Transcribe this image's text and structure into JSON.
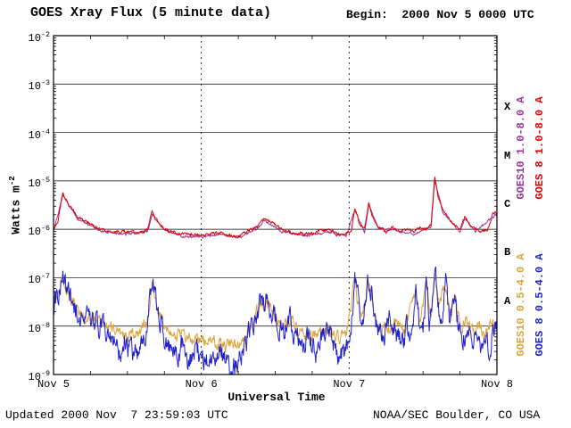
{
  "chart_data": {
    "type": "line",
    "title": "GOES Xray Flux (5 minute data)",
    "begin_label": "Begin:  2000 Nov 5 0000 UTC",
    "xlabel": "Universal Time",
    "ylabel_base": "Watts m",
    "ylabel_exp": "-2",
    "footer_left": "Updated 2000 Nov  7 23:59:03 UTC",
    "footer_right": "NOAA/SEC Boulder, CO USA",
    "x_unit": "hours since 2000 Nov 5 00:00 UTC",
    "xlim": [
      0,
      72
    ],
    "ylim_log10": [
      -9,
      -2
    ],
    "grid": {
      "h_decades": true,
      "v_day_lines": [
        24,
        48
      ]
    },
    "y_tick_base": "10",
    "y_ticks": [
      "-2",
      "-3",
      "-4",
      "-5",
      "-6",
      "-7",
      "-8",
      "-9"
    ],
    "x_ticks": [
      {
        "t": 0,
        "label": "Nov 5"
      },
      {
        "t": 24,
        "label": "Nov 6"
      },
      {
        "t": 48,
        "label": "Nov 7"
      },
      {
        "t": 72,
        "label": "Nov 8"
      }
    ],
    "flare_classes": [
      {
        "label": "X",
        "log10_mid": -3.5
      },
      {
        "label": "M",
        "log10_mid": -4.5
      },
      {
        "label": "C",
        "log10_mid": -5.5
      },
      {
        "label": "B",
        "log10_mid": -6.5
      },
      {
        "label": "A",
        "log10_mid": -7.5
      }
    ],
    "series": [
      {
        "id": "goes10-long",
        "name": "GOES10 1.0-8.0 A",
        "color": "#993399",
        "legend_group": "top",
        "legend_col": "inner",
        "noise_log10": 0.02,
        "points_log10": [
          [
            0,
            -6.05
          ],
          [
            1.5,
            -5.3
          ],
          [
            4,
            -5.8
          ],
          [
            8,
            -6.05
          ],
          [
            12,
            -6.1
          ],
          [
            15.3,
            -6.05
          ],
          [
            16,
            -5.68
          ],
          [
            18,
            -6.0
          ],
          [
            21,
            -6.15
          ],
          [
            24,
            -6.16
          ],
          [
            27,
            -6.1
          ],
          [
            30,
            -6.18
          ],
          [
            33,
            -6.0
          ],
          [
            34.3,
            -5.83
          ],
          [
            37,
            -6.05
          ],
          [
            41,
            -6.14
          ],
          [
            44.5,
            -6.05
          ],
          [
            47.5,
            -6.14
          ],
          [
            48.9,
            -5.6
          ],
          [
            50.5,
            -6.05
          ],
          [
            51.2,
            -5.5
          ],
          [
            52.8,
            -6.0
          ],
          [
            55,
            -6.0
          ],
          [
            58.5,
            -6.1
          ],
          [
            61.3,
            -5.95
          ],
          [
            61.9,
            -4.98
          ],
          [
            63.2,
            -5.65
          ],
          [
            66,
            -6.05
          ],
          [
            66.8,
            -5.78
          ],
          [
            68.5,
            -6.05
          ],
          [
            71.3,
            -5.75
          ],
          [
            72,
            -5.7
          ]
        ]
      },
      {
        "id": "goes10-short",
        "name": "GOES10 0.5-4.0 A",
        "color": "#dda43c",
        "legend_group": "bottom",
        "legend_col": "inner",
        "noise_log10": 0.11,
        "points_log10": [
          [
            0,
            -7.5
          ],
          [
            1.5,
            -7.0
          ],
          [
            3,
            -7.5
          ],
          [
            5,
            -7.8
          ],
          [
            8,
            -7.95
          ],
          [
            10,
            -8.1
          ],
          [
            12,
            -8.2
          ],
          [
            14,
            -8.15
          ],
          [
            15.3,
            -7.85
          ],
          [
            16,
            -7.1
          ],
          [
            17,
            -7.7
          ],
          [
            18.5,
            -8.0
          ],
          [
            20,
            -8.2
          ],
          [
            22,
            -8.25
          ],
          [
            24,
            -8.3
          ],
          [
            26,
            -8.35
          ],
          [
            28,
            -8.4
          ],
          [
            30,
            -8.35
          ],
          [
            32,
            -8.05
          ],
          [
            33,
            -7.7
          ],
          [
            34,
            -7.5
          ],
          [
            35.5,
            -7.7
          ],
          [
            37,
            -7.95
          ],
          [
            38.5,
            -7.85
          ],
          [
            40,
            -8.1
          ],
          [
            42,
            -8.2
          ],
          [
            44,
            -8.05
          ],
          [
            46,
            -8.25
          ],
          [
            47.5,
            -8.2
          ],
          [
            48.9,
            -7.1
          ],
          [
            50,
            -7.9
          ],
          [
            51.2,
            -7.2
          ],
          [
            52.5,
            -7.95
          ],
          [
            54,
            -8.1
          ],
          [
            55.5,
            -7.95
          ],
          [
            57,
            -8.1
          ],
          [
            58.8,
            -7.2
          ],
          [
            59.5,
            -7.9
          ],
          [
            60.6,
            -7.1
          ],
          [
            61.3,
            -7.9
          ],
          [
            61.9,
            -6.9
          ],
          [
            62.6,
            -7.5
          ],
          [
            63.7,
            -7.15
          ],
          [
            64.5,
            -7.85
          ],
          [
            65.2,
            -7.4
          ],
          [
            66,
            -8.05
          ],
          [
            67,
            -7.9
          ],
          [
            68,
            -8.15
          ],
          [
            69,
            -8.0
          ],
          [
            70,
            -8.2
          ],
          [
            71,
            -7.9
          ],
          [
            72,
            -8.0
          ]
        ]
      },
      {
        "id": "goes8-short",
        "name": "GOES 8 0.5-4.0 A",
        "color": "#2222cc",
        "legend_group": "bottom",
        "legend_col": "outer",
        "noise_log10": 0.2,
        "points_log10": [
          [
            0,
            -7.6
          ],
          [
            0.7,
            -7.3
          ],
          [
            1.5,
            -6.95
          ],
          [
            2.5,
            -7.35
          ],
          [
            4,
            -7.7
          ],
          [
            6,
            -7.95
          ],
          [
            8,
            -8.05
          ],
          [
            9,
            -8.2
          ],
          [
            10,
            -8.35
          ],
          [
            10.8,
            -8.6
          ],
          [
            11.5,
            -8.3
          ],
          [
            12.5,
            -8.55
          ],
          [
            13.5,
            -8.6
          ],
          [
            14.5,
            -8.35
          ],
          [
            15.3,
            -7.9
          ],
          [
            16,
            -7.05
          ],
          [
            16.8,
            -7.6
          ],
          [
            17.8,
            -8.1
          ],
          [
            19,
            -8.45
          ],
          [
            20,
            -8.6
          ],
          [
            21,
            -8.4
          ],
          [
            22,
            -8.7
          ],
          [
            23,
            -8.5
          ],
          [
            24,
            -8.6
          ],
          [
            25,
            -8.75
          ],
          [
            26,
            -8.6
          ],
          [
            27,
            -8.45
          ],
          [
            28,
            -8.8
          ],
          [
            29,
            -8.9
          ],
          [
            30,
            -8.7
          ],
          [
            31,
            -8.4
          ],
          [
            32,
            -8.1
          ],
          [
            33,
            -7.75
          ],
          [
            34,
            -7.45
          ],
          [
            34.8,
            -7.6
          ],
          [
            35.5,
            -7.75
          ],
          [
            36.5,
            -7.95
          ],
          [
            37.5,
            -8.1
          ],
          [
            38.5,
            -7.9
          ],
          [
            39.5,
            -8.2
          ],
          [
            40.5,
            -8.45
          ],
          [
            41.5,
            -8.2
          ],
          [
            42.5,
            -8.5
          ],
          [
            43.5,
            -8.3
          ],
          [
            44.5,
            -8.15
          ],
          [
            45.5,
            -8.4
          ],
          [
            46.5,
            -8.6
          ],
          [
            47.5,
            -8.5
          ],
          [
            48.3,
            -8.2
          ],
          [
            48.9,
            -6.95
          ],
          [
            49.5,
            -7.5
          ],
          [
            50.2,
            -8.0
          ],
          [
            51.2,
            -7.05
          ],
          [
            51.8,
            -7.5
          ],
          [
            52.5,
            -8.0
          ],
          [
            53.5,
            -8.25
          ],
          [
            54.5,
            -7.95
          ],
          [
            55.5,
            -8.15
          ],
          [
            56.5,
            -8.3
          ],
          [
            57.5,
            -8.05
          ],
          [
            58.3,
            -8.2
          ],
          [
            58.8,
            -7.05
          ],
          [
            59.3,
            -7.9
          ],
          [
            60.0,
            -8.1
          ],
          [
            60.6,
            -6.95
          ],
          [
            61.1,
            -8.0
          ],
          [
            61.9,
            -6.75
          ],
          [
            62.4,
            -7.5
          ],
          [
            63.0,
            -8.0
          ],
          [
            63.7,
            -7.0
          ],
          [
            64.3,
            -7.9
          ],
          [
            65.2,
            -7.3
          ],
          [
            65.8,
            -8.1
          ],
          [
            66.5,
            -8.3
          ],
          [
            67.3,
            -8.0
          ],
          [
            68,
            -8.4
          ],
          [
            68.8,
            -8.15
          ],
          [
            69.5,
            -8.5
          ],
          [
            70.2,
            -8.25
          ],
          [
            70.8,
            -8.45
          ],
          [
            71.4,
            -7.95
          ],
          [
            72,
            -8.1
          ]
        ]
      },
      {
        "id": "goes8-long",
        "name": "GOES 8 1.0-8.0 A",
        "color": "#dd0000",
        "legend_group": "top",
        "legend_col": "outer",
        "noise_log10": 0.025,
        "points_log10": [
          [
            0,
            -6.0
          ],
          [
            0.7,
            -5.85
          ],
          [
            1.5,
            -5.25
          ],
          [
            2.5,
            -5.5
          ],
          [
            4,
            -5.75
          ],
          [
            6,
            -5.9
          ],
          [
            8,
            -6.0
          ],
          [
            10,
            -6.05
          ],
          [
            12,
            -6.05
          ],
          [
            14,
            -6.08
          ],
          [
            15.3,
            -6.0
          ],
          [
            16,
            -5.62
          ],
          [
            16.6,
            -5.8
          ],
          [
            17.5,
            -5.95
          ],
          [
            19,
            -6.05
          ],
          [
            21,
            -6.1
          ],
          [
            23,
            -6.1
          ],
          [
            25,
            -6.12
          ],
          [
            26.5,
            -6.05
          ],
          [
            28,
            -6.12
          ],
          [
            30,
            -6.15
          ],
          [
            31.5,
            -6.05
          ],
          [
            33,
            -5.95
          ],
          [
            34.3,
            -5.78
          ],
          [
            35.5,
            -5.85
          ],
          [
            37,
            -6.0
          ],
          [
            39,
            -6.08
          ],
          [
            41,
            -6.1
          ],
          [
            43,
            -6.05
          ],
          [
            44.5,
            -6.0
          ],
          [
            46,
            -6.1
          ],
          [
            47.5,
            -6.1
          ],
          [
            48.4,
            -6.05
          ],
          [
            48.9,
            -5.55
          ],
          [
            49.6,
            -5.85
          ],
          [
            50.5,
            -6.0
          ],
          [
            51.2,
            -5.45
          ],
          [
            51.8,
            -5.75
          ],
          [
            52.8,
            -5.95
          ],
          [
            54,
            -6.05
          ],
          [
            55,
            -5.95
          ],
          [
            56,
            -6.05
          ],
          [
            57.5,
            -6.0
          ],
          [
            58.5,
            -6.05
          ],
          [
            59.5,
            -5.95
          ],
          [
            60.5,
            -6.0
          ],
          [
            61.3,
            -5.9
          ],
          [
            61.9,
            -4.92
          ],
          [
            62.4,
            -5.3
          ],
          [
            63.2,
            -5.6
          ],
          [
            64.5,
            -5.85
          ],
          [
            66,
            -6.0
          ],
          [
            66.8,
            -5.72
          ],
          [
            67.5,
            -5.9
          ],
          [
            68.5,
            -6.0
          ],
          [
            69.5,
            -6.05
          ],
          [
            70.5,
            -6.0
          ],
          [
            71.3,
            -5.7
          ],
          [
            71.7,
            -5.62
          ],
          [
            72,
            -5.65
          ]
        ]
      }
    ]
  }
}
